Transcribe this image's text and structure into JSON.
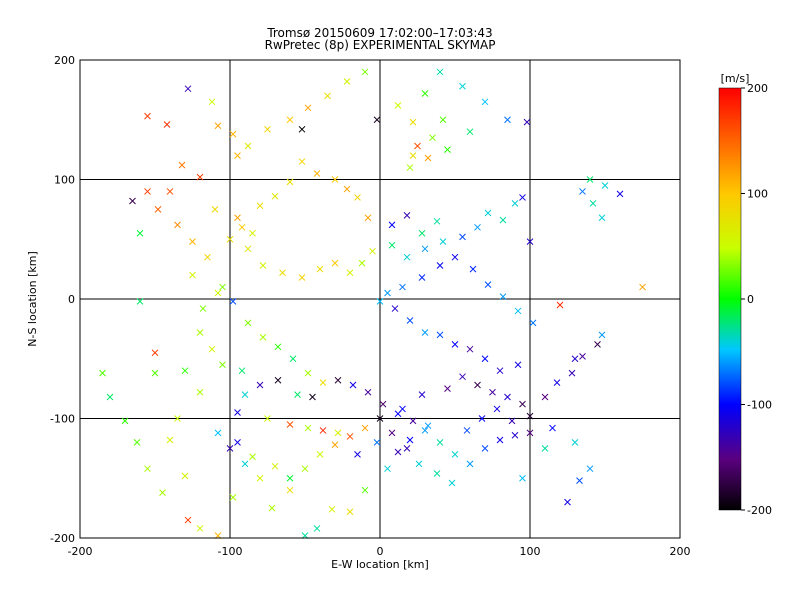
{
  "chart_data": {
    "type": "scatter",
    "title": "Tromsø 20150609 17:02:00–17:03:43",
    "subtitle": "RwPretec (8p) EXPERIMENTAL SKYMAP",
    "xlabel": "E-W location [km]",
    "ylabel": "N-S location [km]",
    "xlim": [
      -200,
      200
    ],
    "ylim": [
      -200,
      200
    ],
    "xticks": [
      "-200",
      "-100",
      "0",
      "100",
      "200"
    ],
    "yticks": [
      "-200",
      "-100",
      "0",
      "100",
      "200"
    ],
    "grid": true,
    "grid_lines": [
      -100,
      0,
      100
    ],
    "colorbar": {
      "label": "[m/s]",
      "range": [
        -200,
        200
      ],
      "ticks": [
        "-200",
        "-100",
        "0",
        "100",
        "200"
      ],
      "colormap": [
        "#000000",
        "#5a007f",
        "#0000ff",
        "#00c8ff",
        "#00ff00",
        "#c8ff00",
        "#ffc800",
        "#ff0000"
      ]
    },
    "markers": [
      "x",
      "dot"
    ],
    "points": [
      [
        -112,
        165,
        50,
        "x"
      ],
      [
        -88,
        128,
        70,
        "x"
      ],
      [
        -95,
        120,
        110,
        "x"
      ],
      [
        -155,
        153,
        170,
        "x"
      ],
      [
        -142,
        146,
        175,
        "x"
      ],
      [
        -128,
        176,
        -130,
        "x"
      ],
      [
        -165,
        82,
        -170,
        "x"
      ],
      [
        -132,
        112,
        140,
        "x"
      ],
      [
        -120,
        102,
        170,
        "x"
      ],
      [
        -140,
        90,
        160,
        "x"
      ],
      [
        -110,
        75,
        85,
        "x"
      ],
      [
        -95,
        68,
        120,
        "x"
      ],
      [
        -85,
        55,
        60,
        "x"
      ],
      [
        -160,
        55,
        -10,
        "x"
      ],
      [
        -125,
        20,
        60,
        "x"
      ],
      [
        -105,
        10,
        30,
        "x"
      ],
      [
        -98,
        -2,
        -80,
        "x"
      ],
      [
        -150,
        -45,
        170,
        "x"
      ],
      [
        -185,
        -62,
        20,
        "x"
      ],
      [
        -92,
        -60,
        -20,
        "x"
      ],
      [
        -80,
        -72,
        -130,
        "x"
      ],
      [
        -68,
        -68,
        -190,
        "x"
      ],
      [
        -55,
        -80,
        -20,
        "x"
      ],
      [
        -45,
        -82,
        -190,
        "x"
      ],
      [
        -95,
        -95,
        -110,
        "x"
      ],
      [
        -75,
        -100,
        50,
        "x"
      ],
      [
        -60,
        -105,
        160,
        "x"
      ],
      [
        -48,
        -108,
        40,
        "x"
      ],
      [
        -38,
        -110,
        180,
        "x"
      ],
      [
        -28,
        -112,
        60,
        "x"
      ],
      [
        -95,
        -120,
        -110,
        "x"
      ],
      [
        -85,
        -132,
        40,
        "x"
      ],
      [
        -70,
        -140,
        60,
        "x"
      ],
      [
        -60,
        -150,
        -10,
        "x"
      ],
      [
        -130,
        -148,
        60,
        "x"
      ],
      [
        -145,
        -162,
        40,
        "x"
      ],
      [
        -128,
        -185,
        170,
        "x"
      ],
      [
        -98,
        -166,
        40,
        "x"
      ],
      [
        -72,
        -175,
        40,
        "x"
      ],
      [
        -42,
        -192,
        -30,
        "x"
      ],
      [
        -32,
        -176,
        60,
        "x"
      ],
      [
        -20,
        -178,
        80,
        "x"
      ],
      [
        -10,
        -160,
        20,
        "x"
      ],
      [
        5,
        -142,
        -40,
        "x"
      ],
      [
        12,
        -128,
        -130,
        "x"
      ],
      [
        20,
        -118,
        -100,
        "x"
      ],
      [
        30,
        -110,
        -60,
        "x"
      ],
      [
        40,
        -120,
        -30,
        "x"
      ],
      [
        50,
        -130,
        -40,
        "x"
      ],
      [
        60,
        -138,
        -60,
        "x"
      ],
      [
        70,
        -125,
        -80,
        "x"
      ],
      [
        80,
        -118,
        -110,
        "x"
      ],
      [
        90,
        -114,
        -120,
        "x"
      ],
      [
        100,
        -112,
        -150,
        "x"
      ],
      [
        115,
        -108,
        -100,
        "x"
      ],
      [
        130,
        -120,
        -40,
        "x"
      ],
      [
        140,
        -142,
        -60,
        "x"
      ],
      [
        133,
        -152,
        -80,
        "x"
      ],
      [
        110,
        -125,
        -30,
        "x"
      ],
      [
        95,
        -150,
        -50,
        "x"
      ],
      [
        -2,
        -120,
        -70,
        "x"
      ],
      [
        -15,
        -130,
        -110,
        "x"
      ],
      [
        15,
        -92,
        -100,
        "x"
      ],
      [
        28,
        -80,
        -120,
        "x"
      ],
      [
        45,
        -75,
        -150,
        "x"
      ],
      [
        55,
        -65,
        -130,
        "x"
      ],
      [
        65,
        -72,
        -170,
        "x"
      ],
      [
        75,
        -78,
        -140,
        "x"
      ],
      [
        85,
        -82,
        -120,
        "x"
      ],
      [
        95,
        -88,
        -170,
        "x"
      ],
      [
        100,
        -98,
        -180,
        "x"
      ],
      [
        110,
        -82,
        -150,
        "x"
      ],
      [
        118,
        -70,
        -110,
        "x"
      ],
      [
        128,
        -62,
        -130,
        "x"
      ],
      [
        145,
        -38,
        -170,
        "x"
      ],
      [
        130,
        -50,
        -120,
        "x"
      ],
      [
        92,
        -55,
        -110,
        "x"
      ],
      [
        80,
        -60,
        -120,
        "x"
      ],
      [
        70,
        -50,
        -100,
        "x"
      ],
      [
        60,
        -42,
        -140,
        "x"
      ],
      [
        50,
        -38,
        -100,
        "x"
      ],
      [
        40,
        -30,
        -80,
        "x"
      ],
      [
        30,
        -28,
        -60,
        "x"
      ],
      [
        20,
        -18,
        -80,
        "x"
      ],
      [
        10,
        -8,
        -120,
        "x"
      ],
      [
        0,
        -2,
        -50,
        "x"
      ],
      [
        5,
        5,
        -60,
        "x"
      ],
      [
        15,
        10,
        -70,
        "x"
      ],
      [
        28,
        18,
        -90,
        "x"
      ],
      [
        40,
        28,
        -100,
        "x"
      ],
      [
        50,
        35,
        -110,
        "x"
      ],
      [
        62,
        25,
        -90,
        "x"
      ],
      [
        72,
        12,
        -80,
        "x"
      ],
      [
        82,
        2,
        -60,
        "x"
      ],
      [
        92,
        -10,
        -50,
        "x"
      ],
      [
        102,
        -20,
        -70,
        "x"
      ],
      [
        120,
        -5,
        180,
        "x"
      ],
      [
        135,
        -48,
        -140,
        "x"
      ],
      [
        148,
        -30,
        -60,
        "x"
      ],
      [
        175,
        10,
        120,
        "x"
      ],
      [
        100,
        48,
        -120,
        "x"
      ],
      [
        95,
        85,
        -110,
        "x"
      ],
      [
        98,
        148,
        -130,
        "x"
      ],
      [
        60,
        140,
        -20,
        "x"
      ],
      [
        45,
        125,
        10,
        "x"
      ],
      [
        25,
        128,
        160,
        "x"
      ],
      [
        32,
        118,
        120,
        "x"
      ],
      [
        22,
        120,
        80,
        "x"
      ],
      [
        35,
        135,
        30,
        "x"
      ],
      [
        42,
        150,
        20,
        "x"
      ],
      [
        22,
        148,
        80,
        "x"
      ],
      [
        30,
        172,
        10,
        "x"
      ],
      [
        12,
        162,
        50,
        "x"
      ],
      [
        20,
        110,
        40,
        "x"
      ],
      [
        38,
        65,
        -30,
        "x"
      ],
      [
        28,
        55,
        -20,
        "x"
      ],
      [
        18,
        70,
        -130,
        "x"
      ],
      [
        8,
        62,
        -100,
        "x"
      ],
      [
        -8,
        68,
        120,
        "x"
      ],
      [
        -15,
        85,
        90,
        "x"
      ],
      [
        -22,
        92,
        120,
        "x"
      ],
      [
        -30,
        100,
        100,
        "x"
      ],
      [
        -42,
        105,
        110,
        "x"
      ],
      [
        -52,
        115,
        90,
        "x"
      ],
      [
        -60,
        98,
        80,
        "x"
      ],
      [
        -70,
        86,
        70,
        "x"
      ],
      [
        -80,
        78,
        80,
        "x"
      ],
      [
        -92,
        60,
        100,
        "x"
      ],
      [
        -100,
        50,
        80,
        "x"
      ],
      [
        -88,
        42,
        70,
        "x"
      ],
      [
        -78,
        28,
        60,
        "x"
      ],
      [
        -65,
        22,
        80,
        "x"
      ],
      [
        -52,
        18,
        90,
        "x"
      ],
      [
        -40,
        25,
        80,
        "x"
      ],
      [
        -30,
        30,
        100,
        "x"
      ],
      [
        -20,
        22,
        60,
        "x"
      ],
      [
        -12,
        30,
        40,
        "x"
      ],
      [
        -5,
        40,
        60,
        "x"
      ],
      [
        8,
        45,
        -20,
        "x"
      ],
      [
        18,
        35,
        -40,
        "x"
      ],
      [
        30,
        42,
        -60,
        "x"
      ],
      [
        42,
        48,
        -40,
        "x"
      ],
      [
        55,
        52,
        -80,
        "x"
      ],
      [
        65,
        60,
        -60,
        "x"
      ],
      [
        72,
        72,
        -40,
        "x"
      ],
      [
        82,
        66,
        -30,
        "x"
      ],
      [
        90,
        80,
        -40,
        "x"
      ],
      [
        140,
        100,
        -20,
        "x"
      ],
      [
        150,
        95,
        -40,
        "x"
      ],
      [
        142,
        80,
        -30,
        "x"
      ],
      [
        135,
        90,
        -70,
        "x"
      ],
      [
        160,
        88,
        -110,
        "x"
      ],
      [
        148,
        68,
        -40,
        "x"
      ],
      [
        -88,
        -20,
        30,
        "x"
      ],
      [
        -78,
        -32,
        40,
        "x"
      ],
      [
        -68,
        -40,
        10,
        "x"
      ],
      [
        -58,
        -50,
        -20,
        "x"
      ],
      [
        -48,
        -62,
        40,
        "x"
      ],
      [
        -38,
        -70,
        80,
        "x"
      ],
      [
        -28,
        -68,
        -180,
        "x"
      ],
      [
        -18,
        -72,
        -110,
        "x"
      ],
      [
        -8,
        -78,
        -140,
        "x"
      ],
      [
        2,
        -88,
        -160,
        "x"
      ],
      [
        12,
        -96,
        -100,
        "x"
      ],
      [
        22,
        -102,
        -140,
        "x"
      ],
      [
        32,
        -106,
        -60,
        "x"
      ],
      [
        -108,
        -112,
        -50,
        "x"
      ],
      [
        -100,
        -125,
        -130,
        "x"
      ],
      [
        -90,
        -138,
        -40,
        "x"
      ],
      [
        -80,
        -150,
        60,
        "x"
      ],
      [
        -60,
        -160,
        80,
        "x"
      ],
      [
        -50,
        -142,
        40,
        "x"
      ],
      [
        -40,
        -130,
        50,
        "x"
      ],
      [
        -30,
        -122,
        120,
        "x"
      ],
      [
        -20,
        -115,
        160,
        "x"
      ],
      [
        -10,
        -108,
        120,
        "x"
      ],
      [
        0,
        -100,
        -190,
        "x"
      ],
      [
        8,
        -112,
        -150,
        "x"
      ],
      [
        18,
        -125,
        -130,
        "x"
      ],
      [
        26,
        -138,
        -40,
        "x"
      ],
      [
        38,
        -146,
        -30,
        "x"
      ],
      [
        48,
        -154,
        -40,
        "x"
      ],
      [
        58,
        -110,
        -80,
        "x"
      ],
      [
        68,
        -100,
        -100,
        "x"
      ],
      [
        78,
        -92,
        -110,
        "x"
      ],
      [
        88,
        -102,
        -130,
        "x"
      ],
      [
        -150,
        -62,
        20,
        "x"
      ],
      [
        -160,
        -2,
        -20,
        "x"
      ],
      [
        -120,
        -28,
        40,
        "x"
      ],
      [
        -112,
        -42,
        60,
        "x"
      ],
      [
        -105,
        -55,
        30,
        "x"
      ],
      [
        -90,
        -80,
        -40,
        "x"
      ],
      [
        -120,
        -78,
        40,
        "x"
      ],
      [
        -135,
        -100,
        50,
        "x"
      ],
      [
        -140,
        -118,
        60,
        "x"
      ],
      [
        -155,
        -142,
        40,
        "x"
      ],
      [
        -162,
        -120,
        20,
        "x"
      ],
      [
        -170,
        -102,
        10,
        "x"
      ],
      [
        -180,
        -82,
        -20,
        "x"
      ],
      [
        -130,
        -60,
        10,
        "x"
      ],
      [
        -118,
        -8,
        30,
        "x"
      ],
      [
        -108,
        5,
        50,
        "x"
      ],
      [
        -115,
        35,
        90,
        "x"
      ],
      [
        -125,
        48,
        110,
        "x"
      ],
      [
        -135,
        62,
        130,
        "x"
      ],
      [
        -148,
        75,
        150,
        "x"
      ],
      [
        -155,
        90,
        170,
        "x"
      ],
      [
        -108,
        145,
        120,
        "x"
      ],
      [
        -98,
        138,
        110,
        "x"
      ],
      [
        -75,
        142,
        90,
        "x"
      ],
      [
        -60,
        150,
        100,
        "x"
      ],
      [
        -48,
        160,
        120,
        "x"
      ],
      [
        -35,
        170,
        80,
        "x"
      ],
      [
        -22,
        182,
        60,
        "x"
      ],
      [
        -10,
        190,
        30,
        "x"
      ],
      [
        40,
        190,
        -30,
        "x"
      ],
      [
        55,
        178,
        -40,
        "x"
      ],
      [
        70,
        165,
        -50,
        "x"
      ],
      [
        85,
        150,
        -70,
        "x"
      ],
      [
        -2,
        150,
        -190,
        "x"
      ],
      [
        -52,
        142,
        -200,
        "x"
      ],
      [
        -50,
        -198,
        -30,
        "x"
      ],
      [
        -108,
        -198,
        110,
        "x"
      ],
      [
        -120,
        -192,
        60,
        "x"
      ],
      [
        125,
        -170,
        -110,
        "x"
      ]
    ]
  }
}
